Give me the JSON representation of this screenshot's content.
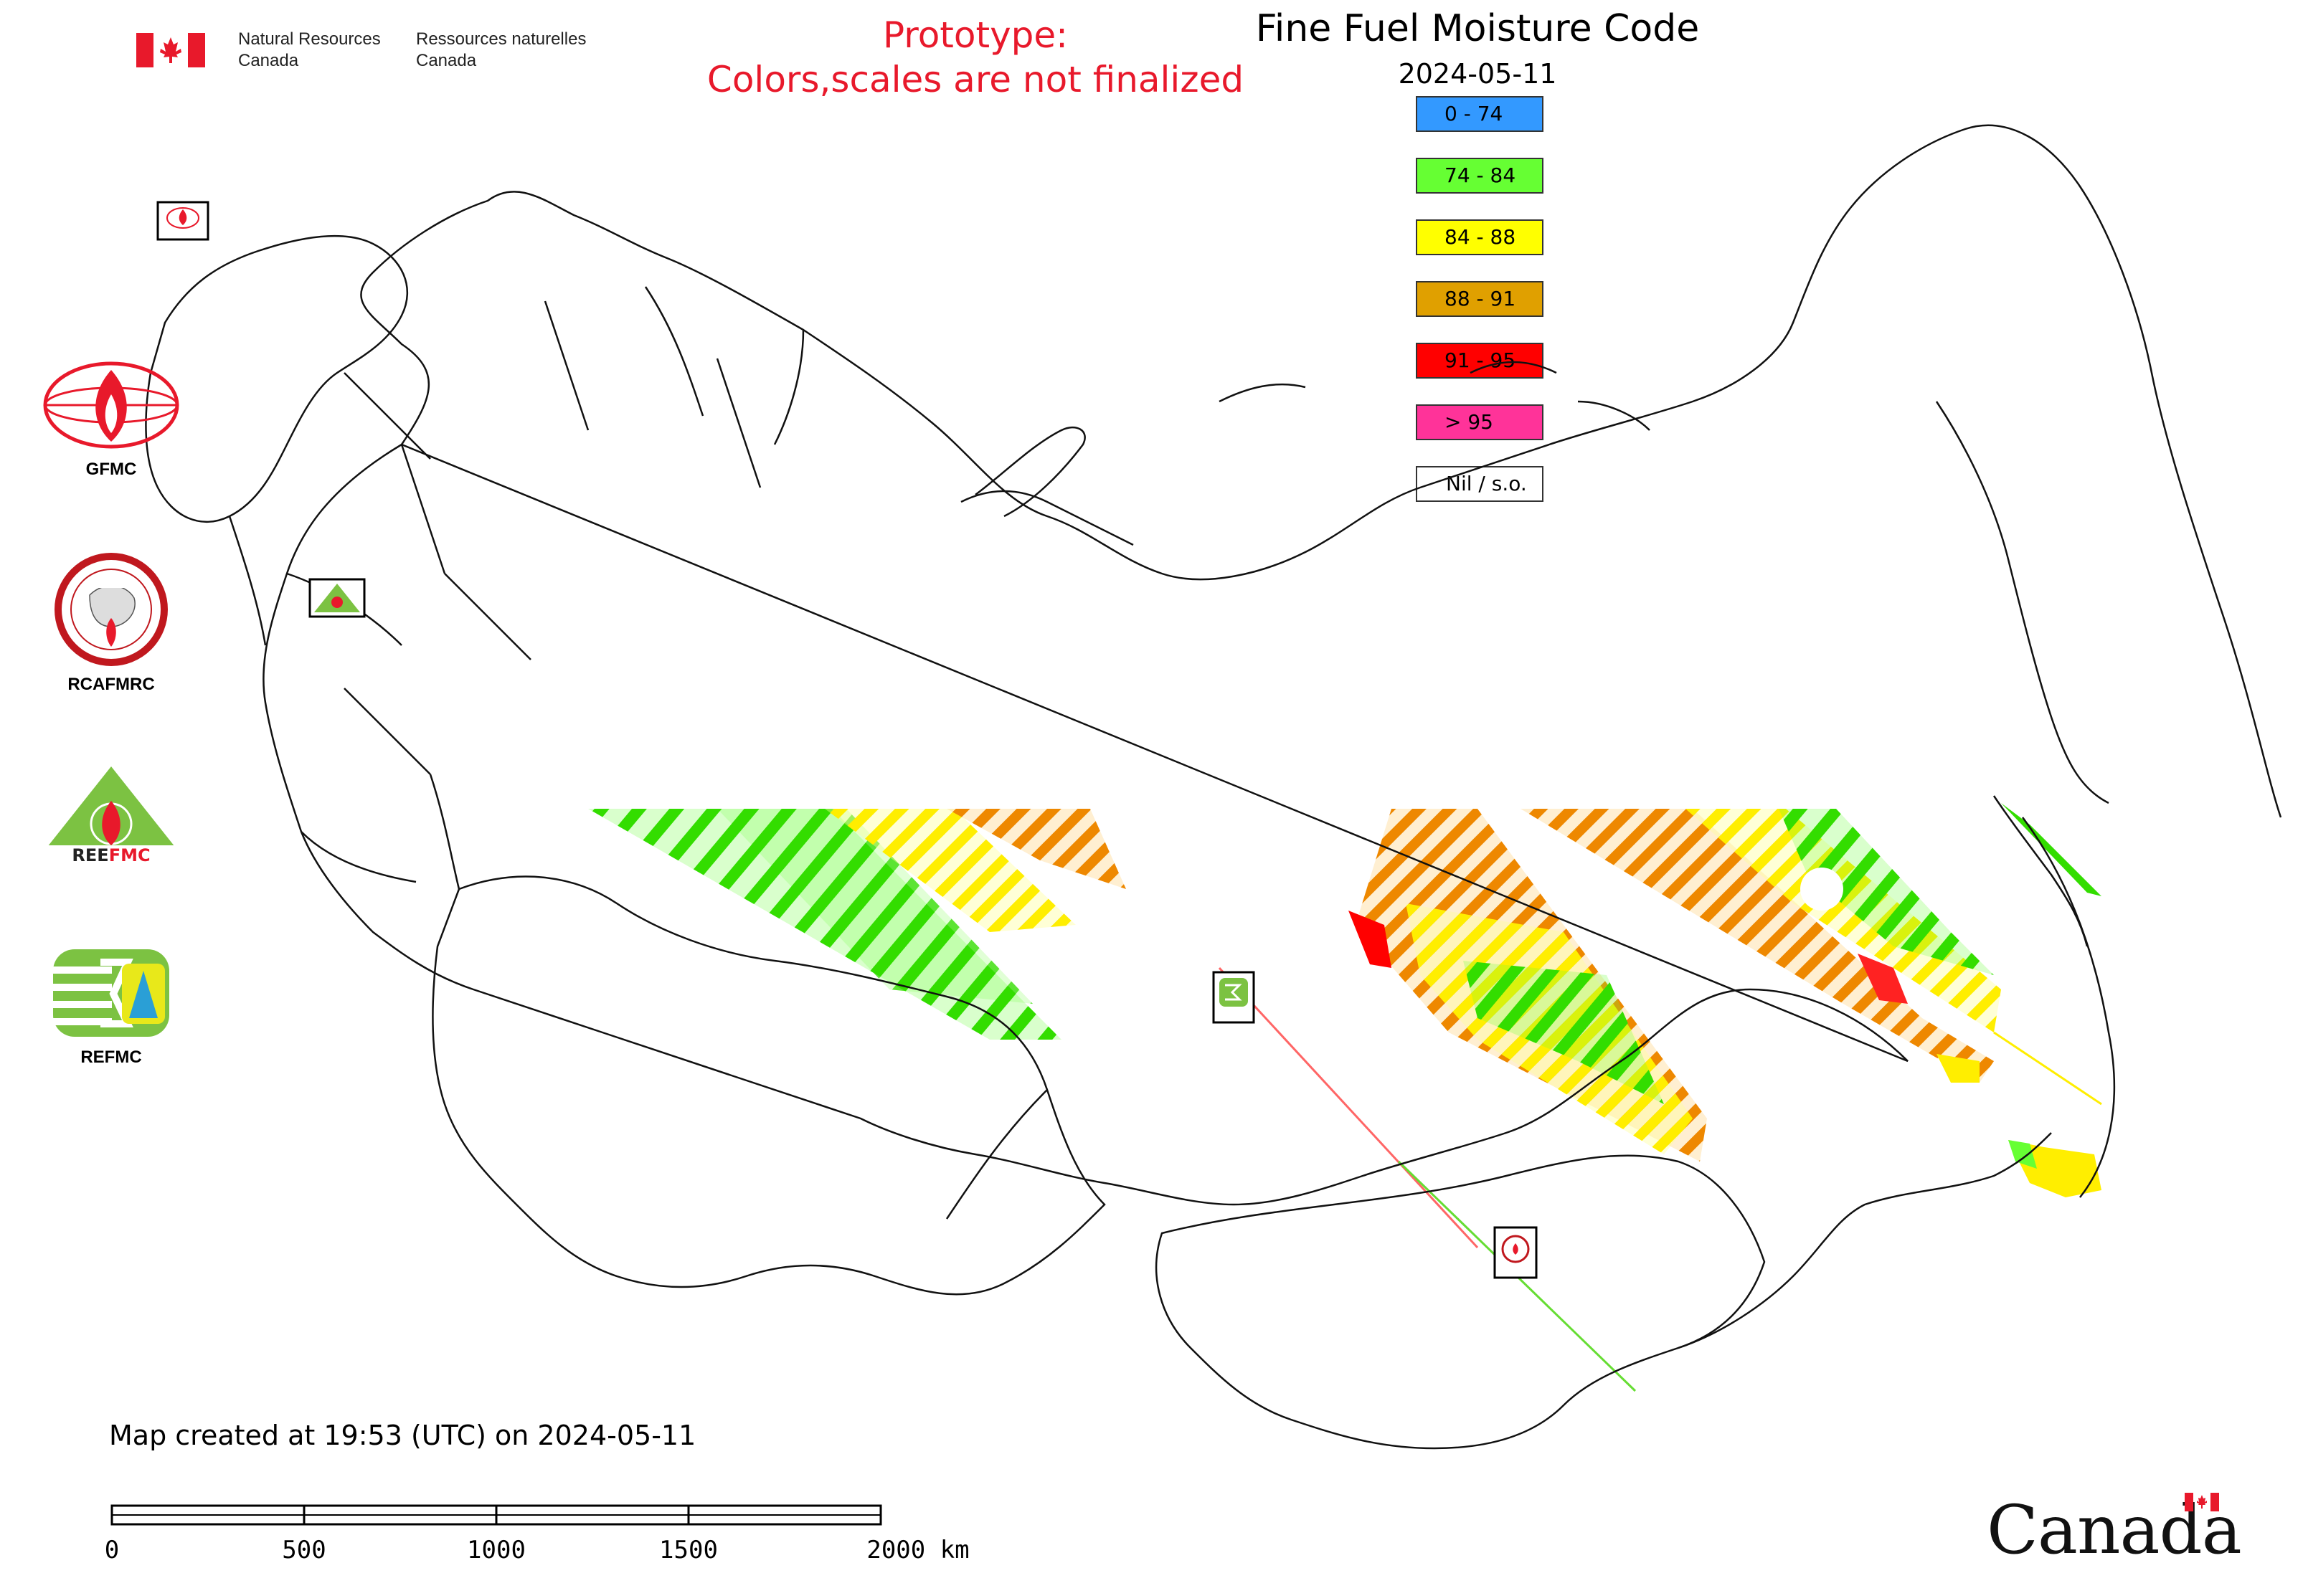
{
  "header": {
    "dept_en_line1": "Natural Resources",
    "dept_en_line2": "Canada",
    "dept_fr_line1": "Ressources naturelles",
    "dept_fr_line2": "Canada"
  },
  "notice": {
    "line1": "Prototype:",
    "line2": "Colors,scales are not finalized",
    "color": "#e8192b"
  },
  "title": "Fine Fuel Moisture Code",
  "date": "2024-05-11",
  "legend": [
    {
      "label": "0 - 74",
      "color": "#3399ff"
    },
    {
      "label": "74 - 84",
      "color": "#66ff33"
    },
    {
      "label": "84 - 88",
      "color": "#ffff00"
    },
    {
      "label": "88 - 91",
      "color": "#e0a000"
    },
    {
      "label": "91 - 95",
      "color": "#ff0000"
    },
    {
      "label": "> 95",
      "color": "#ff3399"
    },
    {
      "label": "Nil / s.o.",
      "color": "#ffffff"
    }
  ],
  "agencies": [
    {
      "label": "GFMC",
      "icon": "gfmc-logo-icon"
    },
    {
      "label": "RCAFMRC",
      "icon": "rcafmrc-logo-icon"
    },
    {
      "label": "REEFMC",
      "icon": "reefmc-logo-icon"
    },
    {
      "label": "REFMC",
      "icon": "refmc-logo-icon"
    }
  ],
  "map_markers": [
    {
      "label": "GFMC",
      "icon": "gfmc-marker-icon"
    },
    {
      "label": "REEFMC",
      "icon": "reefmc-marker-icon"
    },
    {
      "label": "REFMC",
      "icon": "refmc-marker-icon"
    },
    {
      "label": "RCAFMRC",
      "icon": "rcafmrc-marker-icon"
    }
  ],
  "created_note": "Map created at 19:53 (UTC) on 2024-05-11",
  "scale": {
    "ticks": [
      "0",
      "500",
      "1000",
      "1500",
      "2000 km"
    ]
  },
  "wordmark": "Canada"
}
